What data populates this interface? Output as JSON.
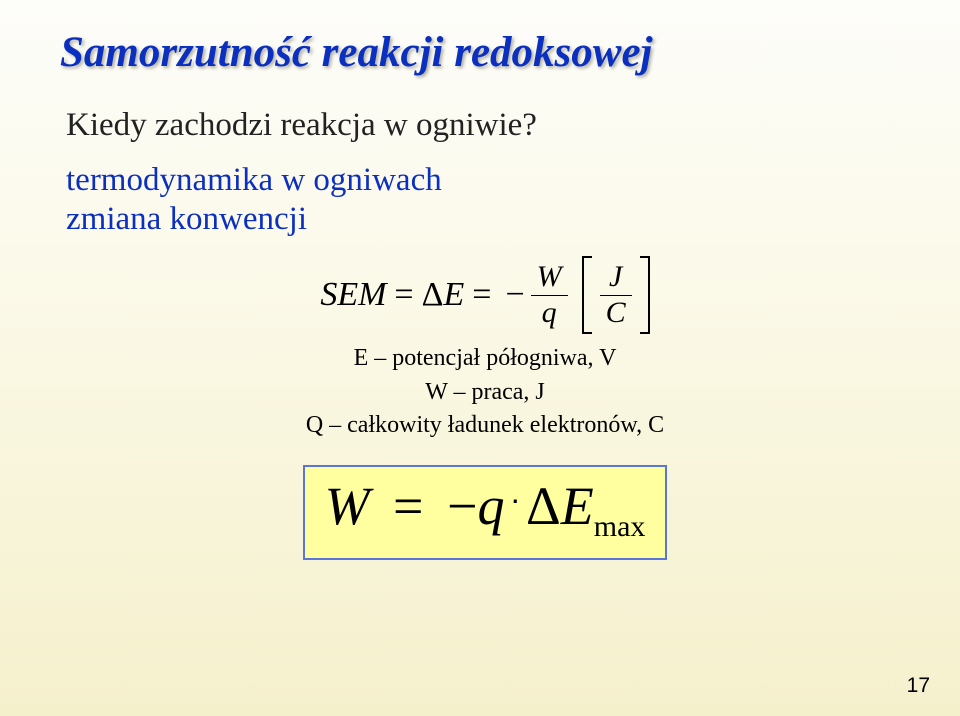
{
  "title": "Samorzutność reakcji redoksowej",
  "line1": "Kiedy zachodzi reakcja w ogniwie?",
  "line2": "termodynamika w ogniwach",
  "line3": "zmiana konwencji",
  "eq_sem": "SEM",
  "eq_delta": "Δ",
  "eq_E": "E",
  "eq_equals": "=",
  "eq_minus": "−",
  "frac1_num": "W",
  "frac1_den": "q",
  "frac2_num": "J",
  "frac2_den": "C",
  "sub1": "E – potencjał półogniwa, V",
  "sub2": "W – praca, J",
  "sub3": "Q – całkowity ładunek elektronów, C",
  "big_W": "W",
  "big_eq": "=",
  "big_minus": "−",
  "big_q": "q",
  "big_delta": "Δ",
  "big_E": "E",
  "big_sub": "max",
  "pagenum": "17",
  "colors": {
    "title_color": "#0b2fbf",
    "blue_text": "#0b2fbf",
    "body_text": "#222222",
    "highlight_bg": "#ffffa0",
    "highlight_border": "#5a76d8",
    "bg_top": "#fdfdfa",
    "bg_bottom": "#f5f0cc"
  }
}
